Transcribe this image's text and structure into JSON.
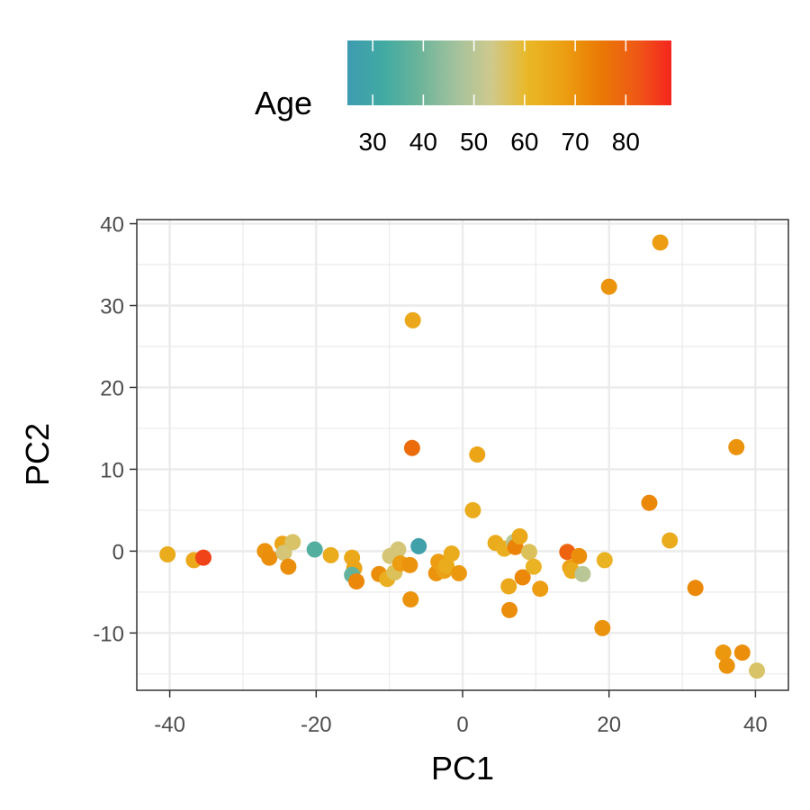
{
  "chart_data": {
    "type": "scatter",
    "xlabel": "PC1",
    "ylabel": "PC2",
    "xlim": [
      -44.5,
      44.5
    ],
    "ylim": [
      -17,
      40.5
    ],
    "x_ticks": [
      -40,
      -20,
      0,
      20,
      40
    ],
    "y_ticks": [
      -10,
      0,
      10,
      20,
      30,
      40
    ],
    "x_tick_labels": [
      "-40",
      "-20",
      "0",
      "20",
      "40"
    ],
    "y_tick_labels": [
      "-10",
      "0",
      "10",
      "20",
      "30",
      "40"
    ],
    "grid": true,
    "legend": {
      "title": "Age",
      "type": "colorbar",
      "position": "top",
      "range": [
        25,
        89
      ],
      "ticks": [
        30,
        40,
        50,
        60,
        70,
        80
      ],
      "tick_labels": [
        "30",
        "40",
        "50",
        "60",
        "70",
        "80"
      ],
      "colors": [
        "#3f9bb0",
        "#41aaa2",
        "#6bb49a",
        "#a2c29d",
        "#cfc98d",
        "#e9b827",
        "#ec9f12",
        "#ea7a04",
        "#ee5a15",
        "#f5261f"
      ]
    },
    "points": [
      {
        "x": 27.0,
        "y": 37.7,
        "age": 68
      },
      {
        "x": 20.0,
        "y": 32.3,
        "age": 70
      },
      {
        "x": -6.8,
        "y": 28.2,
        "age": 65
      },
      {
        "x": -6.9,
        "y": 12.6,
        "age": 78
      },
      {
        "x": 2.0,
        "y": 11.8,
        "age": 66
      },
      {
        "x": 37.4,
        "y": 12.7,
        "age": 70
      },
      {
        "x": 1.4,
        "y": 5.0,
        "age": 64
      },
      {
        "x": 25.5,
        "y": 5.9,
        "age": 72
      },
      {
        "x": 28.3,
        "y": 1.3,
        "age": 64
      },
      {
        "x": -40.3,
        "y": -0.4,
        "age": 64
      },
      {
        "x": -36.7,
        "y": -1.1,
        "age": 65
      },
      {
        "x": -35.4,
        "y": -0.8,
        "age": 85
      },
      {
        "x": -27.0,
        "y": 0.0,
        "age": 70
      },
      {
        "x": -26.4,
        "y": -0.8,
        "age": 71
      },
      {
        "x": -24.6,
        "y": 0.9,
        "age": 66
      },
      {
        "x": -24.4,
        "y": -0.2,
        "age": 55
      },
      {
        "x": -23.2,
        "y": 1.1,
        "age": 56
      },
      {
        "x": -23.8,
        "y": -1.9,
        "age": 71
      },
      {
        "x": -20.2,
        "y": 0.2,
        "age": 35
      },
      {
        "x": -18.0,
        "y": -0.5,
        "age": 64
      },
      {
        "x": -15.1,
        "y": -0.8,
        "age": 65
      },
      {
        "x": -14.8,
        "y": -2.1,
        "age": 66
      },
      {
        "x": -15.1,
        "y": -2.9,
        "age": 38
      },
      {
        "x": -14.5,
        "y": -3.7,
        "age": 72
      },
      {
        "x": -11.4,
        "y": -2.8,
        "age": 71
      },
      {
        "x": -10.3,
        "y": -3.4,
        "age": 63
      },
      {
        "x": -9.9,
        "y": -0.6,
        "age": 55
      },
      {
        "x": -9.3,
        "y": -2.6,
        "age": 57
      },
      {
        "x": -8.8,
        "y": 0.2,
        "age": 55
      },
      {
        "x": -8.5,
        "y": -1.5,
        "age": 68
      },
      {
        "x": -7.2,
        "y": -1.7,
        "age": 70
      },
      {
        "x": -7.1,
        "y": -5.9,
        "age": 70
      },
      {
        "x": -6.0,
        "y": 0.6,
        "age": 28
      },
      {
        "x": -3.6,
        "y": -2.7,
        "age": 70
      },
      {
        "x": -3.3,
        "y": -1.3,
        "age": 68
      },
      {
        "x": -2.5,
        "y": -2.4,
        "age": 67
      },
      {
        "x": -2.2,
        "y": -1.8,
        "age": 64
      },
      {
        "x": -1.5,
        "y": -0.3,
        "age": 64
      },
      {
        "x": -0.5,
        "y": -2.7,
        "age": 69
      },
      {
        "x": 4.5,
        "y": 1.0,
        "age": 64
      },
      {
        "x": 5.7,
        "y": 0.3,
        "age": 63
      },
      {
        "x": 6.3,
        "y": -4.3,
        "age": 65
      },
      {
        "x": 6.4,
        "y": -7.2,
        "age": 71
      },
      {
        "x": 7.0,
        "y": 1.1,
        "age": 50
      },
      {
        "x": 7.2,
        "y": 0.5,
        "age": 73
      },
      {
        "x": 7.8,
        "y": 1.8,
        "age": 65
      },
      {
        "x": 8.2,
        "y": -3.2,
        "age": 72
      },
      {
        "x": 9.1,
        "y": -0.1,
        "age": 57
      },
      {
        "x": 9.7,
        "y": -1.9,
        "age": 62
      },
      {
        "x": 10.6,
        "y": -4.6,
        "age": 68
      },
      {
        "x": 14.3,
        "y": -0.1,
        "age": 80
      },
      {
        "x": 14.7,
        "y": -2.0,
        "age": 67
      },
      {
        "x": 14.9,
        "y": -2.4,
        "age": 64
      },
      {
        "x": 15.9,
        "y": -0.6,
        "age": 71
      },
      {
        "x": 16.4,
        "y": -2.8,
        "age": 50
      },
      {
        "x": 19.1,
        "y": -9.4,
        "age": 70
      },
      {
        "x": 19.4,
        "y": -1.1,
        "age": 62
      },
      {
        "x": 31.8,
        "y": -4.5,
        "age": 72
      },
      {
        "x": 35.6,
        "y": -12.4,
        "age": 69
      },
      {
        "x": 36.1,
        "y": -14.0,
        "age": 70
      },
      {
        "x": 38.2,
        "y": -12.4,
        "age": 71
      },
      {
        "x": 40.2,
        "y": -14.6,
        "age": 56
      }
    ]
  }
}
